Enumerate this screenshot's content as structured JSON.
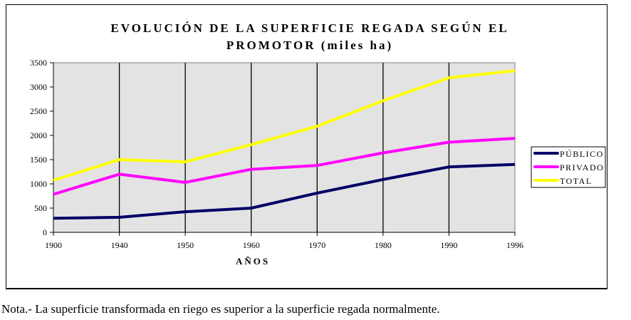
{
  "chart_data": {
    "type": "line",
    "title_line1": "EVOLUCIÓN DE LA SUPERFICIE REGADA   SEGÚN EL",
    "title_line2": "PROMOTOR (miles ha)",
    "xlabel": "AÑOS",
    "ylabel": "",
    "categories": [
      "1900",
      "1940",
      "1950",
      "1960",
      "1970",
      "1980",
      "1990",
      "1996"
    ],
    "yticks": [
      0,
      500,
      1000,
      1500,
      2000,
      2500,
      3000,
      3500
    ],
    "ylim": [
      0,
      3500
    ],
    "grid": "vertical lines at categories",
    "plot_background": "#e3e3e3",
    "legend_position": "right",
    "series": [
      {
        "name": "PÚBLICO",
        "color": "#000066",
        "values": [
          290,
          310,
          425,
          500,
          810,
          1090,
          1350,
          1400
        ]
      },
      {
        "name": "PRIVADO",
        "color": "#ff00ff",
        "values": [
          785,
          1200,
          1030,
          1300,
          1380,
          1640,
          1860,
          1940
        ]
      },
      {
        "name": "TOTAL",
        "color": "#ffff00",
        "values": [
          1075,
          1500,
          1455,
          1810,
          2190,
          2715,
          3190,
          3335
        ]
      }
    ]
  },
  "note": "Nota.- La superficie transformada en riego es superior a la superficie regada normalmente."
}
